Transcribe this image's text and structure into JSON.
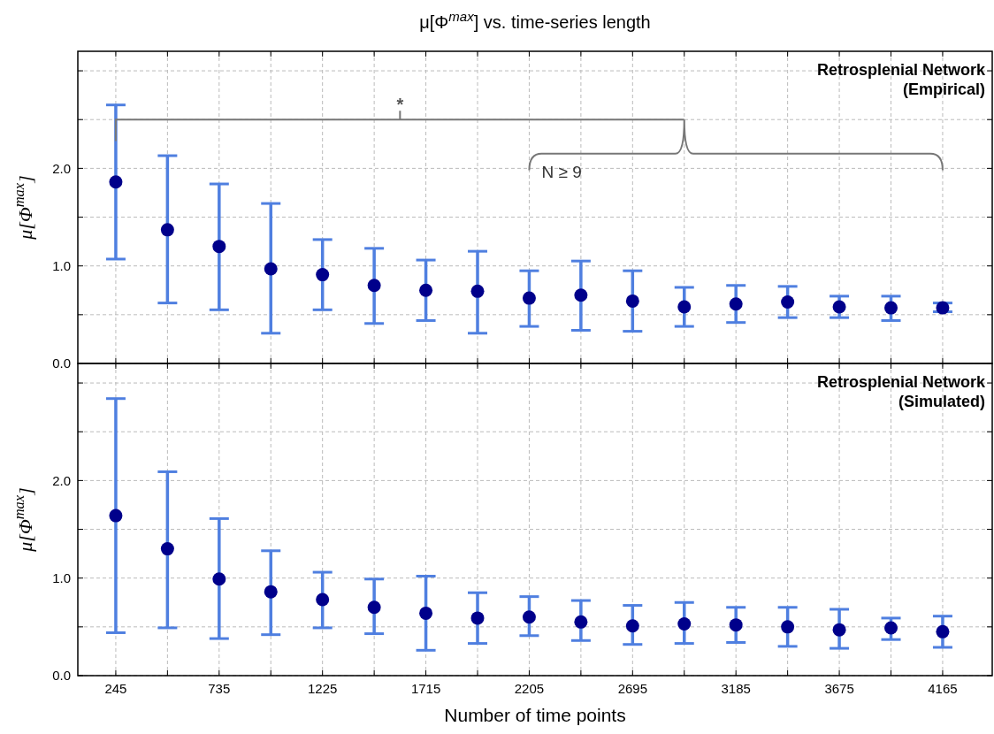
{
  "chart_data": [
    {
      "type": "scatter",
      "title": "μ[Φ$^{max}$] vs. time-series length",
      "ylabel": "μ[Φ$^{max}$]",
      "annotations": [
        "Retrosplenial Network\n(Empirical)",
        "*",
        "N ≥ 9"
      ],
      "x": [
        245,
        490,
        735,
        980,
        1225,
        1470,
        1715,
        1960,
        2205,
        2450,
        2695,
        2940,
        3185,
        3430,
        3675,
        3920,
        4165
      ],
      "series": [
        {
          "color": "#00008b",
          "values": [
            1.86,
            1.37,
            1.2,
            0.97,
            0.91,
            0.8,
            0.75,
            0.74,
            0.67,
            0.7,
            0.64,
            0.58,
            0.61,
            0.63,
            0.58,
            0.57,
            0.57
          ],
          "errors": [
            [
              1.07,
              2.65
            ],
            [
              0.62,
              2.13
            ],
            [
              0.55,
              1.84
            ],
            [
              0.31,
              1.64
            ],
            [
              0.55,
              1.27
            ],
            [
              0.41,
              1.18
            ],
            [
              0.44,
              1.06
            ],
            [
              0.31,
              1.15
            ],
            [
              0.38,
              0.95
            ],
            [
              0.34,
              1.05
            ],
            [
              0.33,
              0.95
            ],
            [
              0.38,
              0.78
            ],
            [
              0.42,
              0.8
            ],
            [
              0.47,
              0.79
            ],
            [
              0.47,
              0.69
            ],
            [
              0.44,
              0.69
            ],
            [
              0.53,
              0.62
            ]
          ]
        }
      ],
      "xlim": [
        65,
        4400
      ],
      "ylim": [
        0,
        3.2
      ],
      "xticks": [
        245,
        {
          "value": 490,
          "label": null
        },
        735,
        {
          "value": 980,
          "label": null
        },
        1225,
        {
          "value": 1470,
          "label": null
        },
        1715,
        {
          "value": 1960,
          "label": null
        },
        2205,
        {
          "value": 2450,
          "label": null
        },
        2695,
        {
          "value": 2940,
          "label": null
        },
        3185,
        {
          "value": 3430,
          "label": null
        },
        3675,
        {
          "value": 3920,
          "label": null
        },
        4165
      ],
      "yticks": [
        {
          "value": 0,
          "label": "0.0"
        },
        {
          "value": 0.5,
          "label": null
        },
        {
          "value": 1,
          "label": "1.0"
        },
        {
          "value": 1.5,
          "label": null
        },
        {
          "value": 2,
          "label": "2.0"
        },
        {
          "value": 2.5,
          "label": null
        },
        {
          "value": 3,
          "label": null
        }
      ],
      "tick_labels": "y",
      "grid": true,
      "marker": "circle"
    },
    {
      "type": "scatter",
      "ylabel": "μ[Φ$^{max}$]",
      "xlabel": "Number of time points",
      "annotations": [
        "Retrosplenial Network\n(Simulated)"
      ],
      "x": [
        245,
        490,
        735,
        980,
        1225,
        1470,
        1715,
        1960,
        2205,
        2450,
        2695,
        2940,
        3185,
        3430,
        3675,
        3920,
        4165
      ],
      "series": [
        {
          "color": "#00008b",
          "values": [
            1.64,
            1.3,
            0.99,
            0.86,
            0.78,
            0.7,
            0.64,
            0.59,
            0.6,
            0.55,
            0.51,
            0.53,
            0.52,
            0.5,
            0.47,
            0.49,
            0.45
          ],
          "errors": [
            [
              0.44,
              2.84
            ],
            [
              0.49,
              2.09
            ],
            [
              0.38,
              1.61
            ],
            [
              0.42,
              1.28
            ],
            [
              0.49,
              1.06
            ],
            [
              0.43,
              0.99
            ],
            [
              0.26,
              1.02
            ],
            [
              0.33,
              0.85
            ],
            [
              0.41,
              0.81
            ],
            [
              0.36,
              0.77
            ],
            [
              0.32,
              0.72
            ],
            [
              0.33,
              0.75
            ],
            [
              0.34,
              0.7
            ],
            [
              0.3,
              0.7
            ],
            [
              0.28,
              0.68
            ],
            [
              0.37,
              0.59
            ],
            [
              0.29,
              0.61
            ]
          ]
        }
      ],
      "xlim": [
        65,
        4400
      ],
      "ylim": [
        0,
        3.2
      ],
      "xticks": [
        245,
        {
          "value": 490,
          "label": null
        },
        735,
        {
          "value": 980,
          "label": null
        },
        1225,
        {
          "value": 1470,
          "label": null
        },
        1715,
        {
          "value": 1960,
          "label": null
        },
        2205,
        {
          "value": 2450,
          "label": null
        },
        2695,
        {
          "value": 2940,
          "label": null
        },
        3185,
        {
          "value": 3430,
          "label": null
        },
        3675,
        {
          "value": 3920,
          "label": null
        },
        4165
      ],
      "yticks": [
        {
          "value": 0,
          "label": "0.0"
        },
        {
          "value": 0.5,
          "label": null
        },
        {
          "value": 1,
          "label": "1.0"
        },
        {
          "value": 1.5,
          "label": null
        },
        {
          "value": 2,
          "label": "2.0"
        },
        {
          "value": 2.5,
          "label": null
        },
        {
          "value": 3,
          "label": null
        }
      ],
      "grid": true,
      "marker": "circle"
    }
  ]
}
